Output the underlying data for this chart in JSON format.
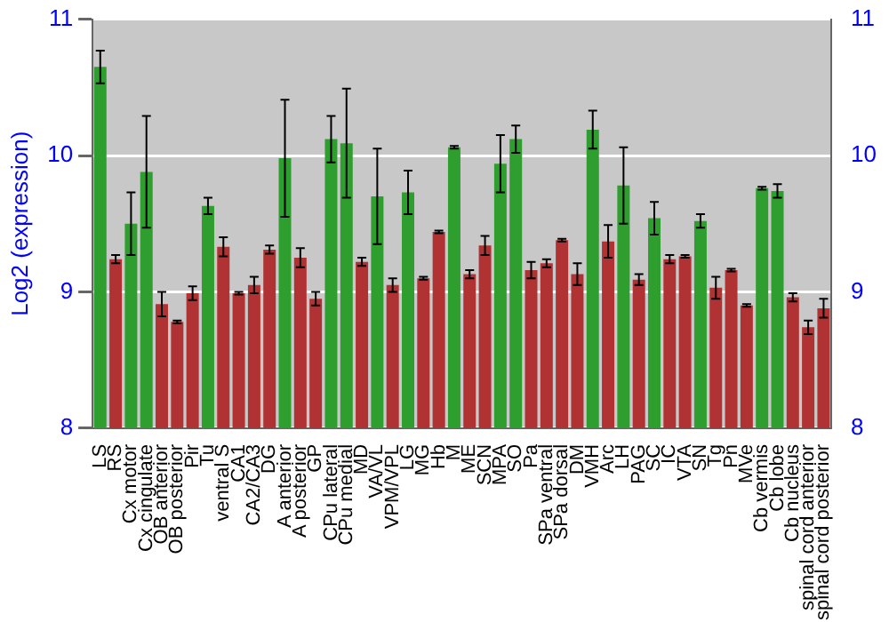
{
  "chart_data": {
    "type": "bar",
    "ylabel": "Log2 (expression)",
    "categories": [
      "LS",
      "RS",
      "Cx motor",
      "Cx cingulate",
      "OB anterior",
      "OB posterior",
      "Pir",
      "Tu",
      "ventral S",
      "CA1",
      "CA2/CA3",
      "DG",
      "A anterior",
      "A posterior",
      "GP",
      "CPu lateral",
      "CPu medial",
      "MD",
      "VA/VL",
      "VPM/VPL",
      "LG",
      "MG",
      "Hb",
      "M",
      "ME",
      "SCN",
      "MPA",
      "SO",
      "Pa",
      "SPa ventral",
      "SPa dorsal",
      "DM",
      "VMH",
      "Arc",
      "LH",
      "PAG",
      "SC",
      "IC",
      "VTA",
      "SN",
      "Tg",
      "Pn",
      "MVe",
      "Cb vermis",
      "Cb lobe",
      "Cb nucleus",
      "spinal cord anterior",
      "spinal cord posterior"
    ],
    "values": [
      10.65,
      9.24,
      9.5,
      9.88,
      8.91,
      8.78,
      8.99,
      9.63,
      9.33,
      8.99,
      9.05,
      9.31,
      9.98,
      9.25,
      8.95,
      10.12,
      10.09,
      9.22,
      9.7,
      9.05,
      9.73,
      9.1,
      9.44,
      10.06,
      9.13,
      9.34,
      9.94,
      10.12,
      9.16,
      9.21,
      9.38,
      9.13,
      10.19,
      9.37,
      9.78,
      9.09,
      9.54,
      9.24,
      9.26,
      9.52,
      9.03,
      9.16,
      8.9,
      9.76,
      9.74,
      8.96,
      8.74,
      8.88
    ],
    "errors": [
      0.12,
      0.03,
      0.23,
      0.41,
      0.09,
      0.01,
      0.05,
      0.06,
      0.07,
      0.01,
      0.06,
      0.03,
      0.43,
      0.07,
      0.05,
      0.17,
      0.4,
      0.03,
      0.35,
      0.05,
      0.16,
      0.01,
      0.01,
      0.01,
      0.03,
      0.07,
      0.21,
      0.1,
      0.06,
      0.03,
      0.01,
      0.08,
      0.14,
      0.12,
      0.28,
      0.04,
      0.12,
      0.03,
      0.01,
      0.05,
      0.08,
      0.01,
      0.01,
      0.01,
      0.05,
      0.03,
      0.05,
      0.07
    ],
    "colors": [
      "#2e9e2e",
      "#b03232",
      "#2e9e2e",
      "#2e9e2e",
      "#b03232",
      "#b03232",
      "#b03232",
      "#2e9e2e",
      "#b03232",
      "#b03232",
      "#b03232",
      "#b03232",
      "#2e9e2e",
      "#b03232",
      "#b03232",
      "#2e9e2e",
      "#2e9e2e",
      "#b03232",
      "#2e9e2e",
      "#b03232",
      "#2e9e2e",
      "#b03232",
      "#b03232",
      "#2e9e2e",
      "#b03232",
      "#b03232",
      "#2e9e2e",
      "#2e9e2e",
      "#b03232",
      "#b03232",
      "#b03232",
      "#b03232",
      "#2e9e2e",
      "#b03232",
      "#2e9e2e",
      "#b03232",
      "#2e9e2e",
      "#b03232",
      "#b03232",
      "#2e9e2e",
      "#b03232",
      "#b03232",
      "#b03232",
      "#2e9e2e",
      "#2e9e2e",
      "#b03232",
      "#b03232",
      "#b03232"
    ],
    "ylim": [
      8,
      11
    ],
    "yticks": [
      8,
      9,
      10,
      11
    ],
    "y2lim": [
      8,
      11
    ],
    "y2ticks": [
      8,
      9,
      10,
      11
    ],
    "grid": "y"
  }
}
